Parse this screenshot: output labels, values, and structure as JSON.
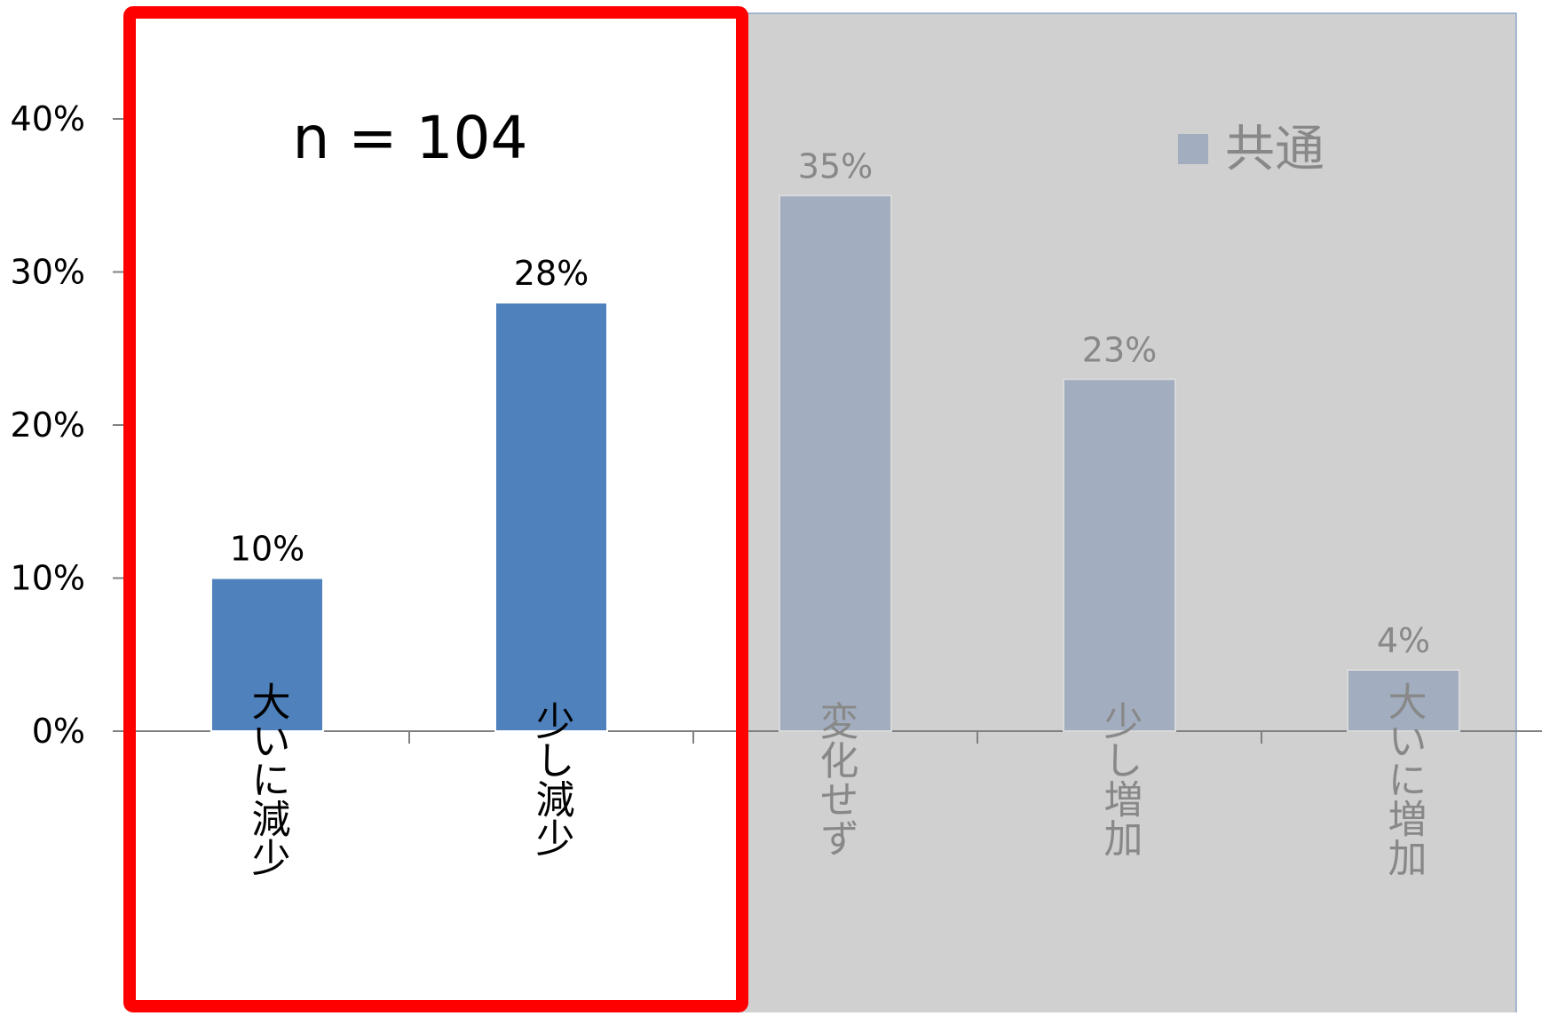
{
  "chart_data": {
    "type": "bar",
    "categories": [
      "大いに減少",
      "少し減少",
      "変化せず",
      "少し増加",
      "大いに増加"
    ],
    "series": [
      {
        "name": "共通",
        "values": [
          10,
          28,
          35,
          23,
          4
        ]
      }
    ],
    "data_labels": [
      "10%",
      "28%",
      "35%",
      "23%",
      "4%"
    ],
    "y_ticks": [
      "0%",
      "10%",
      "20%",
      "30%",
      "40%"
    ],
    "ylim": [
      0,
      40
    ],
    "title": "",
    "xlabel": "",
    "ylabel": "",
    "annotation": "n = 104",
    "legend_position": "top-right",
    "highlighted_categories": [
      "大いに減少",
      "少し減少"
    ],
    "grid": false
  },
  "colors": {
    "bar_highlight": "#4f81bd",
    "bar_muted": "#a2aebf",
    "muted_panel": "#d0d0d0",
    "muted_text": "#888888",
    "highlight_frame": "#ff0000",
    "axis": "#808080",
    "text": "#000000"
  }
}
